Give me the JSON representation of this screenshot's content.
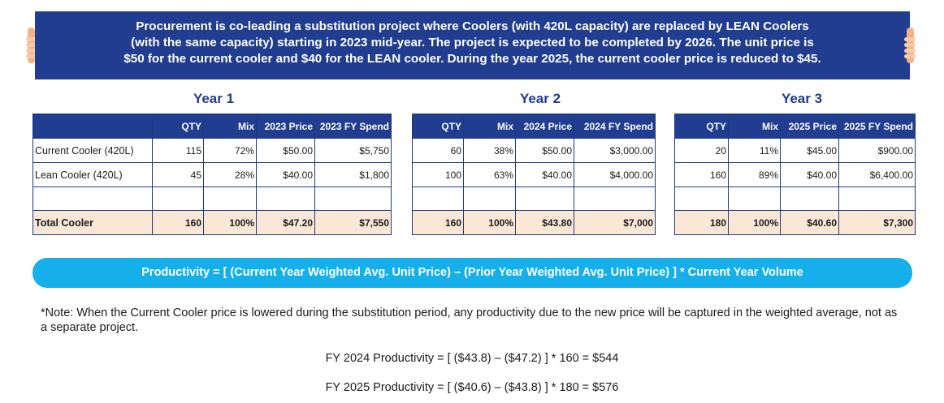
{
  "banner": {
    "line1": "Procurement is co-leading a substitution project where Coolers (with 420L capacity) are replaced by LEAN Coolers",
    "line2": "(with the same capacity) starting in 2023 mid-year. The project is expected to be completed by 2026.  The unit price is",
    "line3": "$50 for the current cooler and $40 for the LEAN cooler. During the year 2025, the current cooler price is reduced to $45."
  },
  "years": [
    {
      "title": "Year 1",
      "headers": {
        "label": "",
        "qty": "QTY",
        "mix": "Mix",
        "price": "2023 Price",
        "spend": "2023 FY Spend"
      },
      "rows": [
        {
          "label": "Current Cooler (420L)",
          "qty": "115",
          "mix": "72%",
          "price": "$50.00",
          "spend": "$5,750"
        },
        {
          "label": "Lean Cooler (420L)",
          "qty": "45",
          "mix": "28%",
          "price": "$40.00",
          "spend": "$1,800"
        }
      ],
      "total": {
        "label": "Total Cooler",
        "qty": "160",
        "mix": "100%",
        "price": "$47.20",
        "spend": "$7,550"
      }
    },
    {
      "title": "Year 2",
      "headers": {
        "qty": "QTY",
        "mix": "Mix",
        "price": "2024 Price",
        "spend": "2024 FY Spend"
      },
      "rows": [
        {
          "qty": "60",
          "mix": "38%",
          "price": "$50.00",
          "spend": "$3,000.00"
        },
        {
          "qty": "100",
          "mix": "63%",
          "price": "$40.00",
          "spend": "$4,000.00"
        }
      ],
      "total": {
        "qty": "160",
        "mix": "100%",
        "price": "$43.80",
        "spend": "$7,000"
      }
    },
    {
      "title": "Year 3",
      "headers": {
        "qty": "QTY",
        "mix": "Mix",
        "price": "2025 Price",
        "spend": "2025 FY Spend"
      },
      "rows": [
        {
          "qty": "20",
          "mix": "11%",
          "price": "$45.00",
          "spend": "$900.00"
        },
        {
          "qty": "160",
          "mix": "89%",
          "price": "$40.00",
          "spend": "$6,400.00"
        }
      ],
      "total": {
        "qty": "180",
        "mix": "100%",
        "price": "$40.60",
        "spend": "$7,300"
      }
    }
  ],
  "formula": "Productivity = [ (Current Year Weighted Avg. Unit Price) – (Prior Year Weighted Avg. Unit Price) ] * Current Year Volume",
  "note": "*Note: When the Current Cooler price is lowered during the substitution period, any productivity due to the new price will be captured in the weighted average, not as a separate project.",
  "calculations": [
    "FY 2024 Productivity = [ ($43.8) – ($47.2) ] * 160  = $544",
    "FY 2025 Productivity = [ ($40.6) – ($43.8) ] * 180  = $576"
  ],
  "colors": {
    "banner": "#213d8f",
    "header": "#213d8f",
    "total_row": "#fbe7d6",
    "pill": "#15b0ec",
    "year_title": "#1f3a93"
  }
}
